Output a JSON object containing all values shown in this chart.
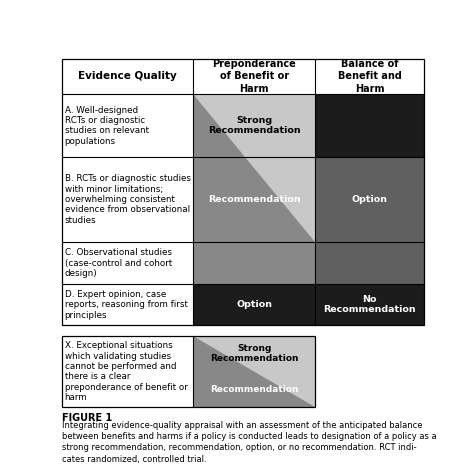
{
  "title": "FIGURE 1",
  "caption_line1": "Integrating evidence-quality appraisal with an assessment of the anticipated balance",
  "caption_line2": "between benefits and harms if a policy is conducted leads to designation of a policy as a",
  "caption_line3": "strong recommendation, recommendation, option, or no recommendation. RCT indi-",
  "caption_line4": "cates randomized, controlled trial.",
  "col_headers": [
    "Evidence Quality",
    "Preponderance\nof Benefit or\nHarm",
    "Balance of\nBenefit and\nHarm"
  ],
  "row_A_text": "A. Well-designed\nRCTs or diagnostic\nstudies on relevant\npopulations",
  "row_B_text": "B. RCTs or diagnostic studies\nwith minor limitations;\noverwhelming consistent\nevidence from observational\nstudies",
  "row_C_text": "C. Observational studies\n(case-control and cohort\ndesign)",
  "row_D_text": "D. Expert opinion, case\nreports, reasoning from first\nprinciples",
  "row_X_text": "X. Exceptional situations\nwhich validating studies\ncannot be performed and\nthere is a clear\npreponderance of benefit or\nharm",
  "color_white": "#ffffff",
  "color_light_gray": "#c8c8c8",
  "color_mid_gray": "#888888",
  "color_dark_gray": "#484848",
  "color_very_dark": "#1c1c1c",
  "color_col2_B": "#606060"
}
